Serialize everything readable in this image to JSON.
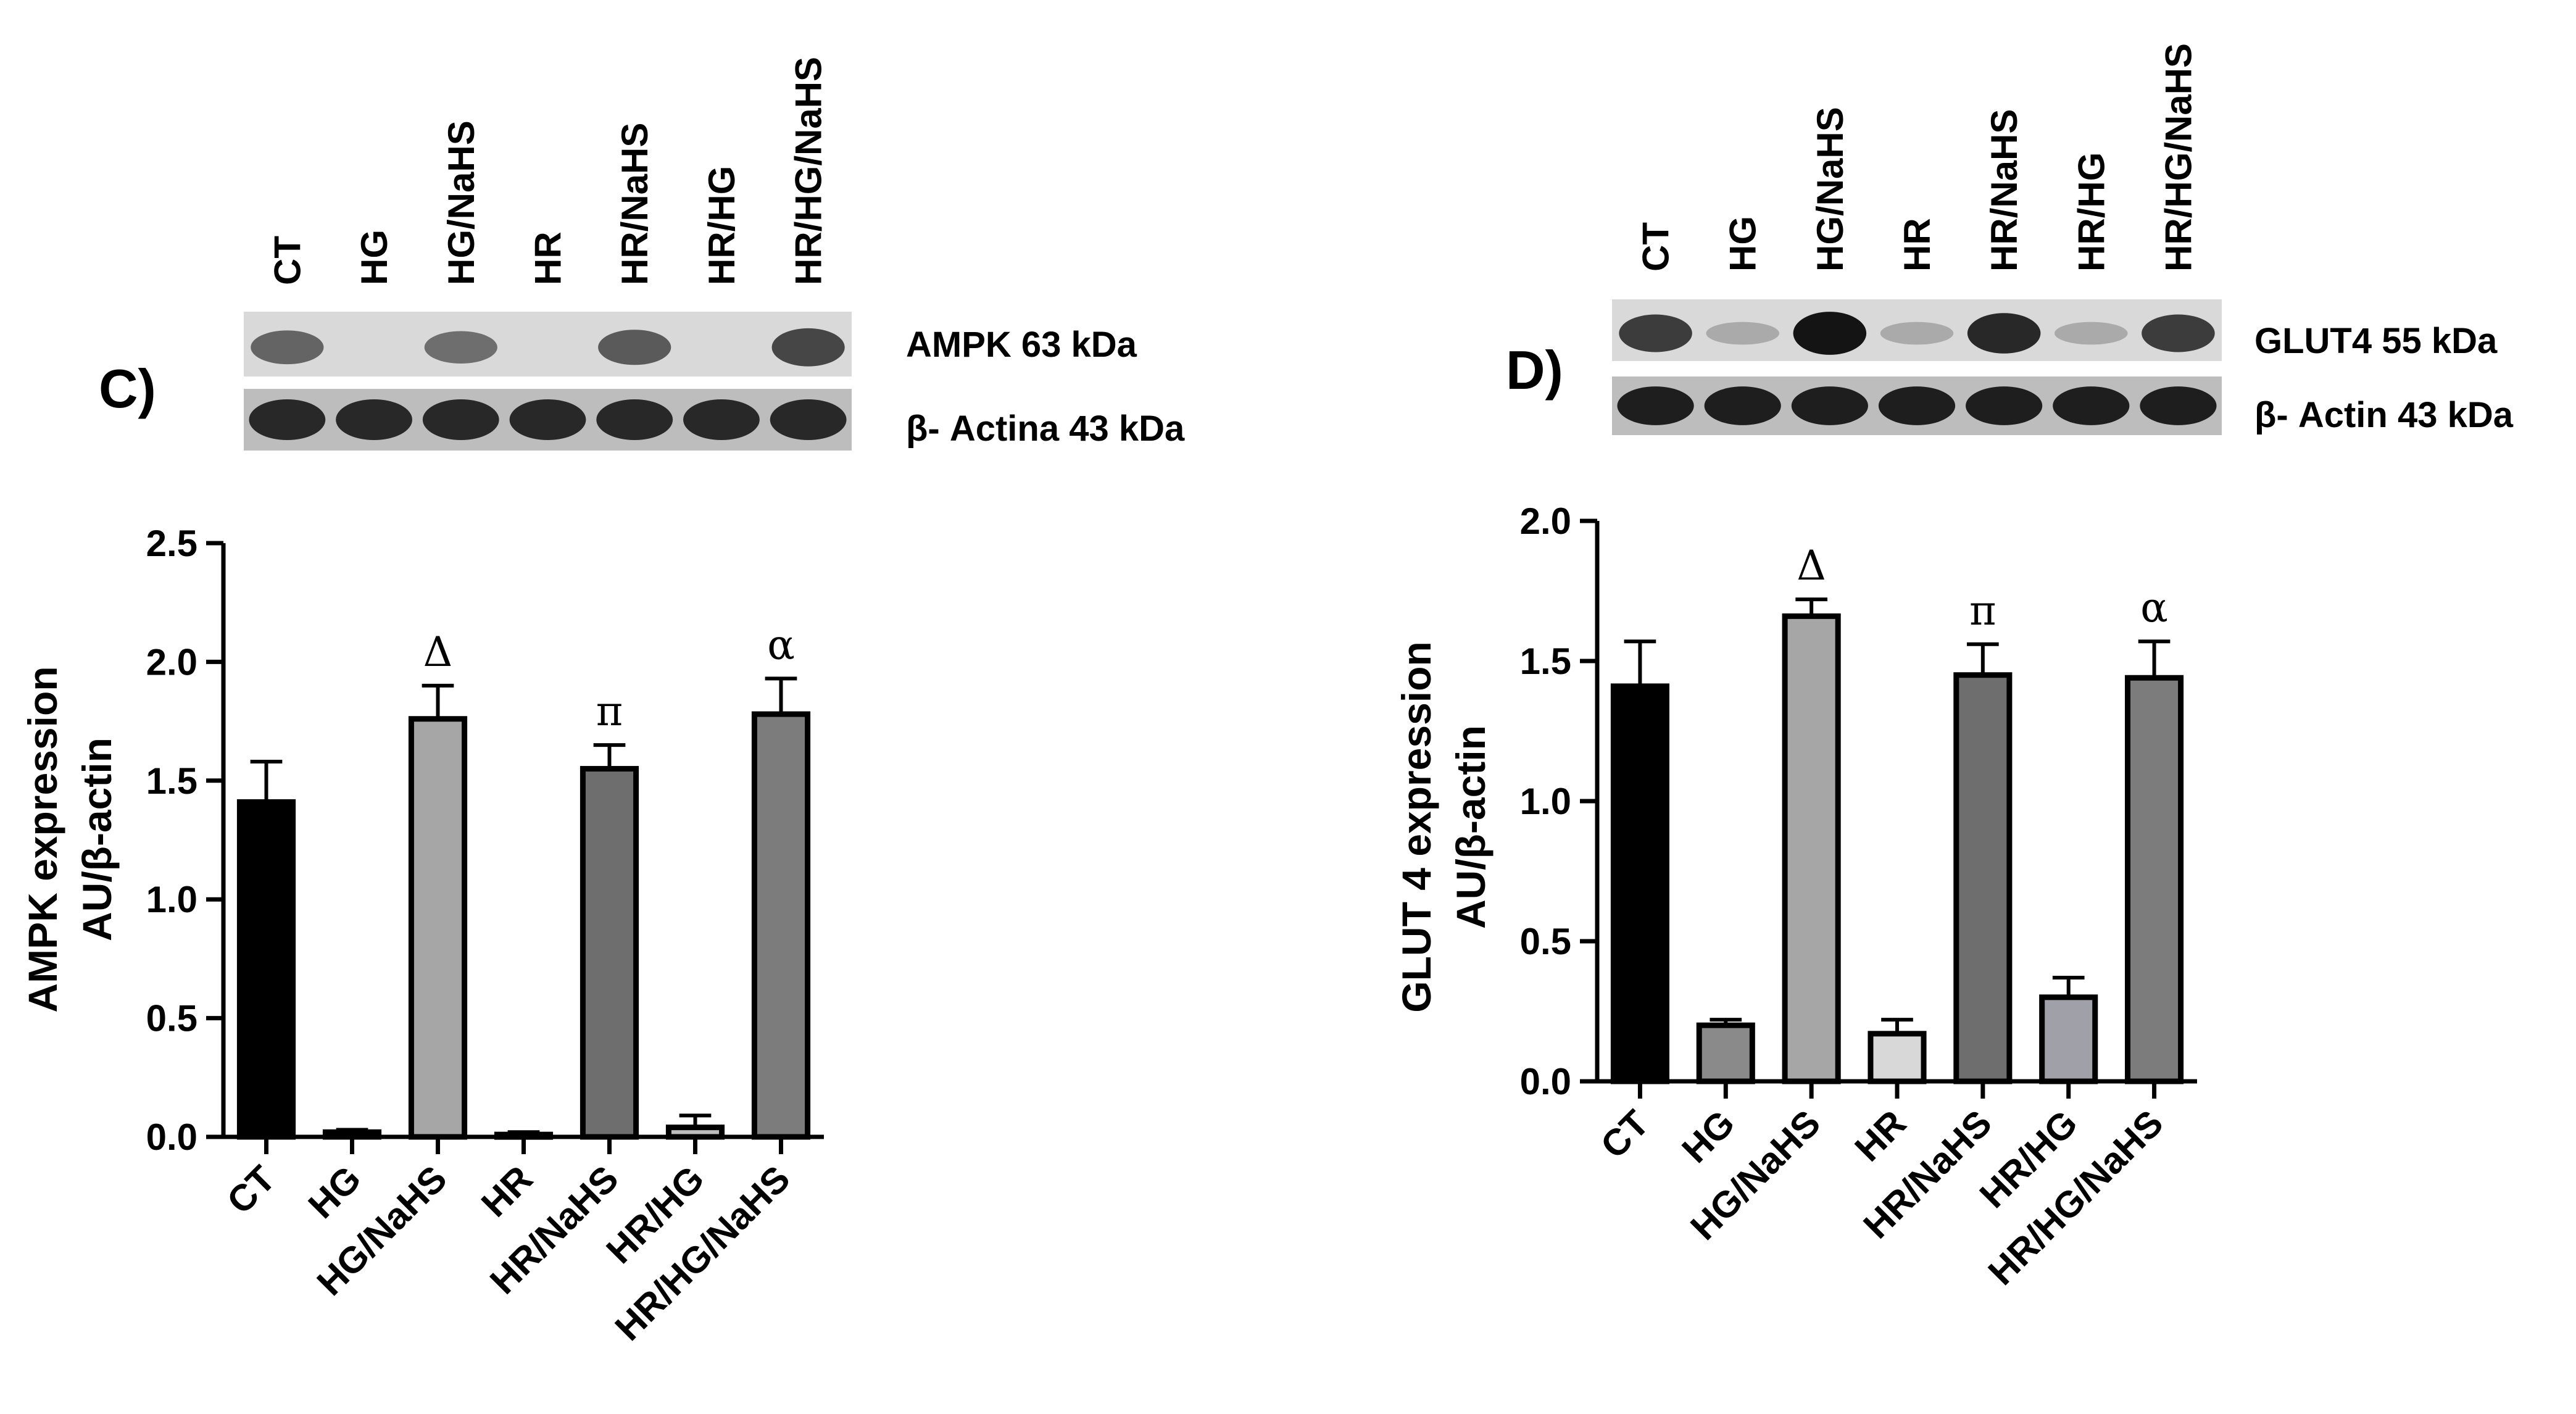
{
  "panels": [
    {
      "panel_label": "C)",
      "blot": {
        "lanes": [
          "CT",
          "HG",
          "HG/NaHS",
          "HR",
          "HR/NaHS",
          "HR/HG",
          "HR/HG/NaHS"
        ],
        "band_labels": [
          "AMPK 63 kDa",
          "β- Actina 43 kDa"
        ],
        "top_band_intensity": [
          0.55,
          0.0,
          0.5,
          0.0,
          0.6,
          0.0,
          0.7
        ],
        "bottom_band_intensity": [
          0.85,
          0.85,
          0.85,
          0.85,
          0.85,
          0.85,
          0.85
        ]
      }
    },
    {
      "panel_label": "D)",
      "blot": {
        "lanes": [
          "CT",
          "HG",
          "HG/NaHS",
          "HR",
          "HR/NaHS",
          "HR/HG",
          "HR/HG/NaHS"
        ],
        "band_labels": [
          "GLUT4 55 kDa",
          "β- Actin 43 kDa"
        ],
        "top_band_intensity": [
          0.75,
          0.2,
          0.95,
          0.2,
          0.85,
          0.2,
          0.75
        ],
        "bottom_band_intensity": [
          0.9,
          0.9,
          0.9,
          0.9,
          0.9,
          0.9,
          0.9
        ]
      }
    }
  ],
  "chart_data": [
    {
      "type": "bar",
      "categories": [
        "CT",
        "HG",
        "HG/NaHS",
        "HR",
        "HR/NaHS",
        "HR/HG",
        "HR/HG/NaHS"
      ],
      "values": [
        1.41,
        0.02,
        1.76,
        0.01,
        1.55,
        0.04,
        1.78
      ],
      "errors": [
        0.17,
        0.01,
        0.14,
        0.01,
        0.1,
        0.05,
        0.15
      ],
      "bar_colors": [
        "#000000",
        "#8a8a8a",
        "#a6a6a6",
        "#c8c8c8",
        "#6e6e6e",
        "#bdbdbd",
        "#7c7c7c"
      ],
      "annotations": [
        "",
        "",
        "Δ",
        "",
        "π",
        "",
        "α"
      ],
      "ylabel": [
        "AMPK expression",
        "AU/β-actin"
      ],
      "yticks": [
        "0.0",
        "0.5",
        "1.0",
        "1.5",
        "2.0",
        "2.5"
      ],
      "ylim": [
        0,
        2.5
      ],
      "grid": false
    },
    {
      "type": "bar",
      "categories": [
        "CT",
        "HG",
        "HG/NaHS",
        "HR",
        "HR/NaHS",
        "HR/HG",
        "HR/HG/NaHS"
      ],
      "values": [
        1.41,
        0.2,
        1.66,
        0.17,
        1.45,
        0.3,
        1.44
      ],
      "errors": [
        0.16,
        0.02,
        0.06,
        0.05,
        0.11,
        0.07,
        0.13
      ],
      "bar_colors": [
        "#000000",
        "#8a8a8a",
        "#a6a6a6",
        "#d8d8d8",
        "#6e6e6e",
        "#a0a0a8",
        "#7c7c7c"
      ],
      "annotations": [
        "",
        "",
        "Δ",
        "",
        "π",
        "",
        "α"
      ],
      "ylabel": [
        "GLUT 4 expression",
        "AU/β-actin"
      ],
      "yticks": [
        "0.0",
        "0.5",
        "1.0",
        "1.5",
        "2.0"
      ],
      "ylim": [
        0,
        2.0
      ],
      "grid": false
    }
  ]
}
